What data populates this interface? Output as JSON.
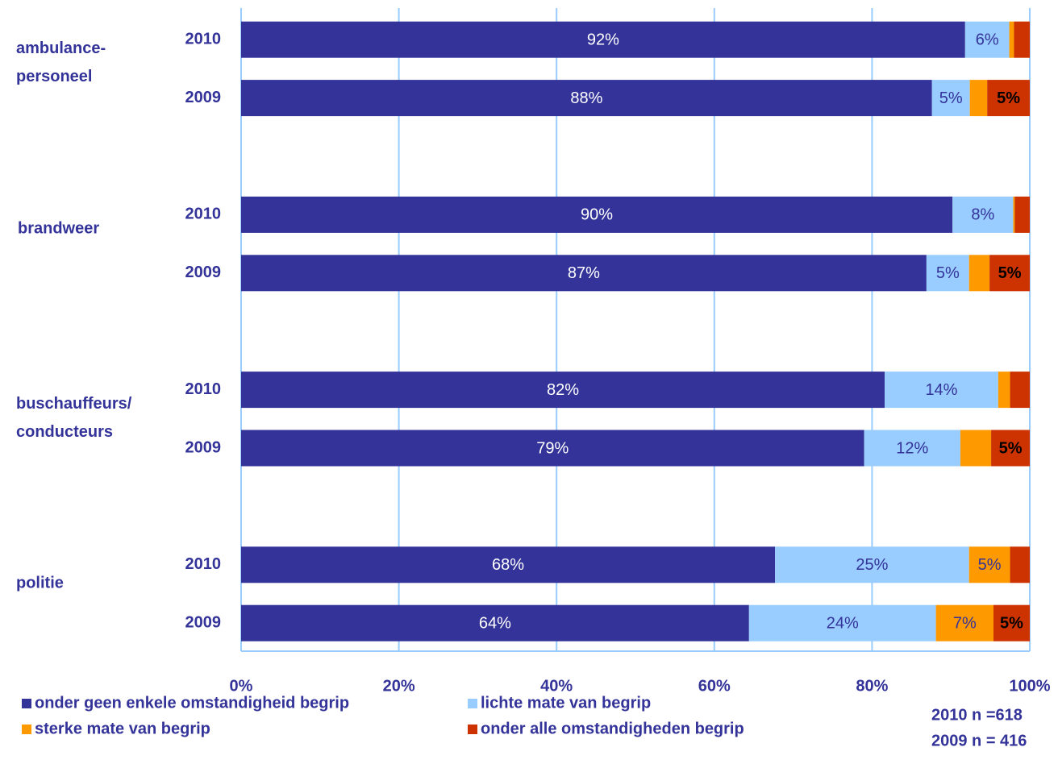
{
  "chart_data": {
    "type": "stacked_barh",
    "categories": [
      "2010",
      "2009",
      "2010",
      "2009",
      "2010",
      "2009",
      "2010",
      "2009"
    ],
    "groups": [
      {
        "lines": [
          "ambulance-",
          "personeel"
        ]
      },
      {
        "lines": [
          "brandweer"
        ]
      },
      {
        "lines": [
          "buschauffeurs/",
          "conducteurs"
        ]
      },
      {
        "lines": [
          "politie"
        ]
      }
    ],
    "series": [
      {
        "name": "onder geen enkele omstandigheid begrip",
        "color": "#333399",
        "label_color": "#ffffff",
        "values": [
          91.8,
          87.6,
          90.2,
          86.9,
          81.6,
          79.0,
          67.7,
          64.4
        ],
        "value_labels": [
          "92%",
          "88%",
          "90%",
          "87%",
          "82%",
          "79%",
          "68%",
          "64%"
        ]
      },
      {
        "name": "lichte mate van begrip",
        "color": "#99ccff",
        "label_color": "#333399",
        "values": [
          5.6,
          4.8,
          7.7,
          5.4,
          14.4,
          12.2,
          24.6,
          23.7
        ],
        "value_labels": [
          "6%",
          "5%",
          "8%",
          "5%",
          "14%",
          "12%",
          "25%",
          "24%"
        ]
      },
      {
        "name": "sterke mate van begrip",
        "color": "#ff9900",
        "label_color": "#333399",
        "values": [
          0.6,
          2.2,
          0.2,
          2.6,
          1.5,
          3.9,
          5.2,
          7.3
        ],
        "value_labels": [
          null,
          null,
          null,
          null,
          null,
          null,
          "5%",
          "7%"
        ]
      },
      {
        "name": "onder alle omstandigheden begrip",
        "color": "#cc3300",
        "label_color": "#000000",
        "label_bold": true,
        "values": [
          2.0,
          5.4,
          1.9,
          5.1,
          2.5,
          4.9,
          2.5,
          4.6
        ],
        "value_labels": [
          null,
          "5%",
          null,
          "5%",
          null,
          "5%",
          null,
          "5%"
        ]
      }
    ],
    "xlim": [
      0,
      100
    ],
    "xticks": [
      {
        "value": 0,
        "label": "0%"
      },
      {
        "value": 20,
        "label": "20%"
      },
      {
        "value": 40,
        "label": "40%"
      },
      {
        "value": 60,
        "label": "60%"
      },
      {
        "value": 80,
        "label": "80%"
      },
      {
        "value": 100,
        "label": "100%"
      }
    ],
    "grid": true,
    "annotations": [
      "2010 n =618",
      "2009 n = 416"
    ]
  }
}
